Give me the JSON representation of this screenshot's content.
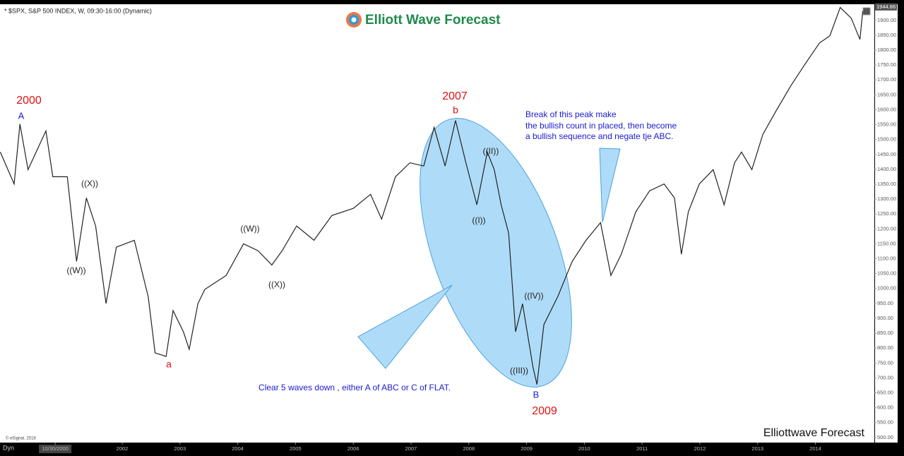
{
  "chart_data": {
    "type": "line",
    "header": "* $SPX, S&P 500 INDEX, W, 09:30-16:00 (Dynamic)",
    "logo": "Elliott Wave Forecast",
    "watermark": "Elliottwave Forecast",
    "copyright": "© eSignal, 2016",
    "corner": "Dyn",
    "color": "#222222",
    "last_value": 1944.86,
    "xlim": [
      1999.885,
      2015.02
    ],
    "ylim": [
      483,
      1954
    ],
    "xticks": [
      {
        "value": 2000.84,
        "label": "10/30/2000"
      },
      2002,
      2003,
      2004,
      2005,
      2006,
      2007,
      2008,
      2009,
      2010,
      2011,
      2012,
      2013,
      2014
    ],
    "yticks": [
      {
        "value": 500,
        "label": "500.00"
      },
      {
        "value": 550,
        "label": "550.00"
      },
      {
        "value": 600,
        "label": "600.00"
      },
      {
        "value": 650,
        "label": "650.00"
      },
      {
        "value": 700,
        "label": "700.00"
      },
      {
        "value": 750,
        "label": "750.00"
      },
      {
        "value": 800,
        "label": "800.00"
      },
      {
        "value": 850,
        "label": "850.00"
      },
      {
        "value": 900,
        "label": "900.00"
      },
      {
        "value": 950,
        "label": "950.00"
      },
      {
        "value": 1000,
        "label": "1000.00"
      },
      {
        "value": 1050,
        "label": "1050.00"
      },
      {
        "value": 1100,
        "label": "1100.00"
      },
      {
        "value": 1150,
        "label": "1150.00"
      },
      {
        "value": 1200,
        "label": "1200.00"
      },
      {
        "value": 1250,
        "label": "1250.00"
      },
      {
        "value": 1300,
        "label": "1300.00"
      },
      {
        "value": 1350,
        "label": "1350.00"
      },
      {
        "value": 1400,
        "label": "1400.00"
      },
      {
        "value": 1450,
        "label": "1450.00"
      },
      {
        "value": 1500,
        "label": "1500.00"
      },
      {
        "value": 1550,
        "label": "1550.00"
      },
      {
        "value": 1600,
        "label": "1600.00"
      },
      {
        "value": 1650,
        "label": "1650.00"
      },
      {
        "value": 1700,
        "label": "1700.00"
      },
      {
        "value": 1750,
        "label": "1750.00"
      },
      {
        "value": 1800,
        "label": "1800.00"
      },
      {
        "value": 1850,
        "label": "1850.00"
      },
      {
        "value": 1900,
        "label": "1900.00"
      }
    ],
    "x": [
      1999.89,
      2000.13,
      2000.23,
      2000.37,
      2000.68,
      2000.8,
      2001.05,
      2001.21,
      2001.38,
      2001.54,
      2001.72,
      2001.9,
      2002.21,
      2002.45,
      2002.57,
      2002.76,
      2002.88,
      2003.06,
      2003.16,
      2003.31,
      2003.43,
      2003.8,
      2004.1,
      2004.35,
      2004.59,
      2004.77,
      2005.02,
      2005.32,
      2005.63,
      2006.0,
      2006.3,
      2006.49,
      2006.73,
      2006.98,
      2007.22,
      2007.4,
      2007.59,
      2007.77,
      2007.95,
      2008.14,
      2008.32,
      2008.44,
      2008.56,
      2008.69,
      2008.81,
      2008.93,
      2009.11,
      2009.18,
      2009.3,
      2009.54,
      2009.79,
      2010.03,
      2010.28,
      2010.46,
      2010.64,
      2010.89,
      2011.13,
      2011.38,
      2011.56,
      2011.68,
      2011.8,
      2011.99,
      2012.23,
      2012.42,
      2012.6,
      2012.72,
      2012.9,
      2013.09,
      2013.33,
      2013.58,
      2013.82,
      2014.07,
      2014.25,
      2014.43,
      2014.62,
      2014.77,
      2014.82
    ],
    "values": [
      1458,
      1351,
      1552,
      1399,
      1529,
      1375,
      1375,
      1091,
      1304,
      1210,
      950,
      1139,
      1162,
      973,
      784,
      772,
      926,
      855,
      796,
      949,
      997,
      1044,
      1150,
      1127,
      1079,
      1127,
      1210,
      1162,
      1245,
      1269,
      1316,
      1233,
      1375,
      1422,
      1411,
      1541,
      1411,
      1564,
      1422,
      1281,
      1458,
      1399,
      1281,
      1186,
      855,
      949,
      737,
      678,
      879,
      973,
      1091,
      1162,
      1221,
      1044,
      1115,
      1257,
      1328,
      1351,
      1304,
      1115,
      1257,
      1351,
      1399,
      1281,
      1422,
      1458,
      1399,
      1517,
      1600,
      1682,
      1753,
      1824,
      1848,
      1943,
      1907,
      1836,
      1931
    ],
    "annotations": [
      "2000",
      "A",
      "((X))",
      "((W))",
      "a",
      "((W))",
      "((X))",
      "2007",
      "b",
      "((II))",
      "((I))",
      "((IV))",
      "((III))",
      "B",
      "2009",
      "Clear 5 waves down , either A of ABC or C of FLAT.",
      "Break of this peak make",
      "the bullish count in placed, then become",
      "a bullish sequence and negate tje ABC."
    ]
  }
}
